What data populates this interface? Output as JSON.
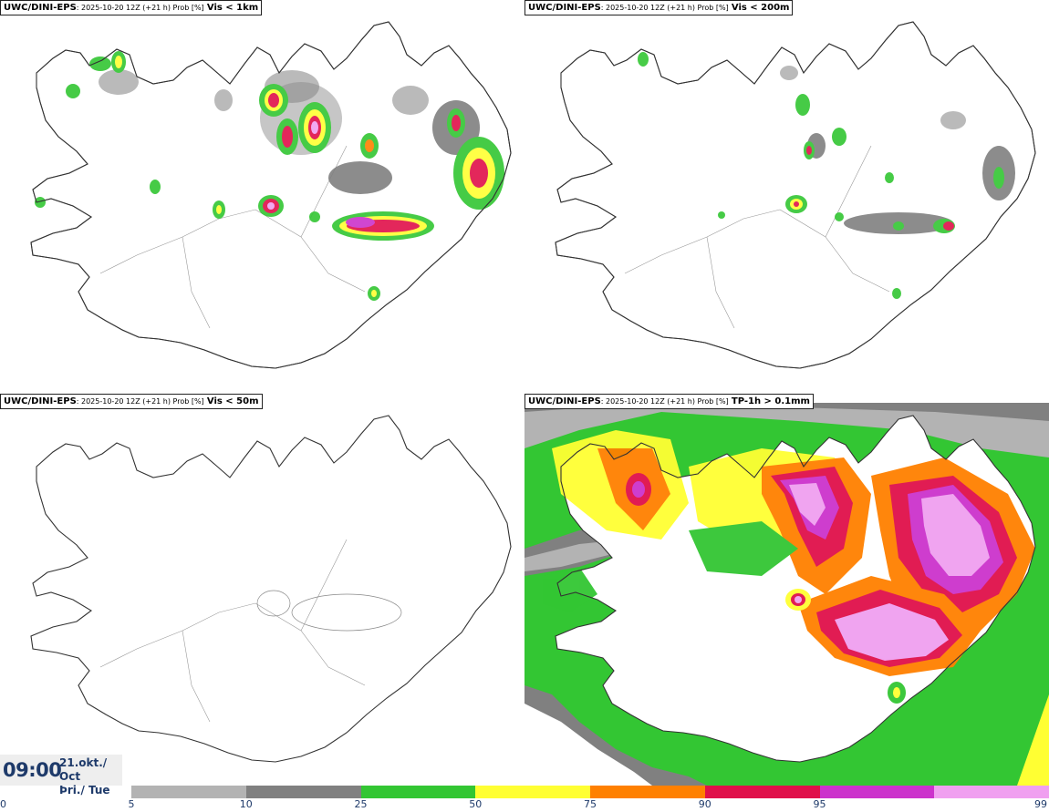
{
  "panels": [
    {
      "source": "UWC/DINI-EPS",
      "meta": ": 2025-10-20 12Z (+21 h) Prob [%]",
      "variable": "Vis < 1km"
    },
    {
      "source": "UWC/DINI-EPS",
      "meta": ": 2025-10-20 12Z (+21 h) Prob [%]",
      "variable": "Vis < 200m"
    },
    {
      "source": "UWC/DINI-EPS",
      "meta": ": 2025-10-20 12Z (+21 h) Prob [%]",
      "variable": "Vis < 50m"
    },
    {
      "source": "UWC/DINI-EPS",
      "meta": ": 2025-10-20 12Z (+21 h) Prob [%]",
      "variable": "TP-1h > 0.1mm"
    }
  ],
  "clock": {
    "time": "09:00",
    "date_line1": "21.okt./ Oct",
    "date_line2": "Þri./ Tue"
  },
  "colorbar": {
    "ticks": [
      "0",
      "5",
      "10",
      "25",
      "50",
      "75",
      "90",
      "95",
      "99"
    ],
    "colors": [
      "#b3b3b3",
      "#808080",
      "#33c633",
      "#ffff33",
      "#ff8000",
      "#e0104a",
      "#cc33cc",
      "#f0a0f0"
    ]
  }
}
